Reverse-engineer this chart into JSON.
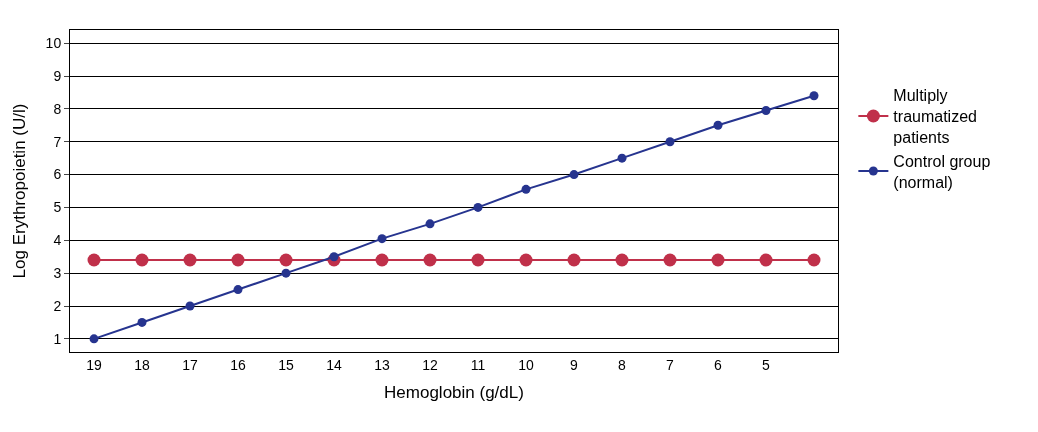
{
  "chart_data": {
    "type": "line",
    "xlabel": "Hemoglobin (g/dL)",
    "ylabel": "Log Erythropoietin (U/l)",
    "categories": [
      "19",
      "18",
      "17",
      "16",
      "15",
      "14",
      "13",
      "12",
      "11",
      "10",
      "9",
      "8",
      "7",
      "6",
      "5",
      null
    ],
    "series": [
      {
        "name": "Multiply\ntraumatized\npatients",
        "color": "#c0304a",
        "values": [
          3.4,
          3.4,
          3.4,
          3.4,
          3.4,
          3.4,
          3.4,
          3.4,
          3.4,
          3.4,
          3.4,
          3.4,
          3.4,
          3.4,
          3.4,
          3.4
        ]
      },
      {
        "name": "Control group\n(normal)",
        "color": "#26348f",
        "values": [
          1.0,
          1.5,
          2.0,
          2.5,
          3.0,
          3.5,
          4.05,
          4.5,
          5.0,
          5.55,
          6.0,
          6.5,
          7.0,
          7.5,
          7.95,
          8.4
        ]
      }
    ],
    "ylim": [
      0.6,
      10.4
    ],
    "yticks": [
      1,
      2,
      3,
      4,
      5,
      6,
      7,
      8,
      9,
      10
    ],
    "grid": "y",
    "legend": "right",
    "marker": "circle",
    "line_style": "solid"
  }
}
